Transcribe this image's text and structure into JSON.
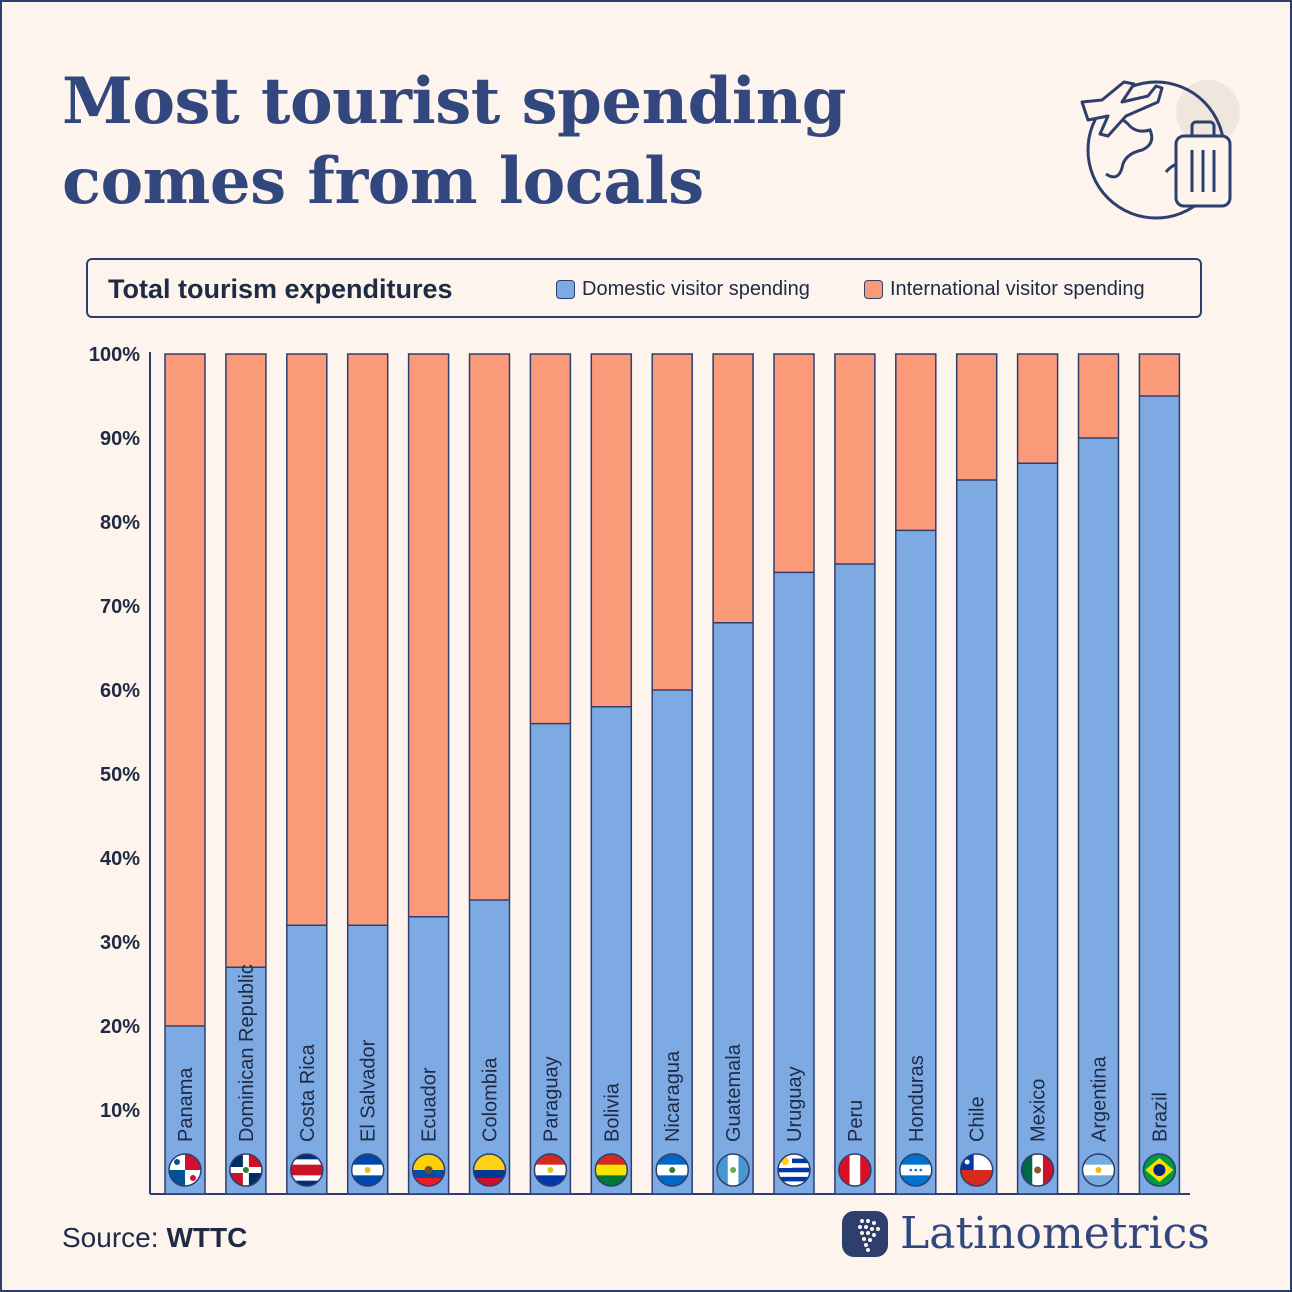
{
  "title_line1": "Most tourist spending",
  "title_line2": "comes from locals",
  "legend": {
    "title": "Total tourism expenditures",
    "domestic": "Domestic visitor spending",
    "international": "International visitor spending"
  },
  "colors": {
    "domestic": "#7daae3",
    "international": "#fb9a79",
    "outline": "#2e3f6e",
    "text": "#33477f"
  },
  "chart_data": {
    "type": "bar",
    "stacked": true,
    "title": "Total tourism expenditures",
    "categories": [
      "Panama",
      "Dominican Republic",
      "Costa Rica",
      "El Salvador",
      "Ecuador",
      "Colombia",
      "Paraguay",
      "Bolivia",
      "Nicaragua",
      "Guatemala",
      "Uruguay",
      "Peru",
      "Honduras",
      "Chile",
      "Mexico",
      "Argentina",
      "Brazil"
    ],
    "series": [
      {
        "name": "Domestic visitor spending",
        "values": [
          20,
          27,
          32,
          32,
          33,
          35,
          56,
          58,
          60,
          68,
          74,
          75,
          79,
          85,
          87,
          90,
          95
        ]
      },
      {
        "name": "International visitor spending",
        "values": [
          80,
          73,
          68,
          68,
          67,
          65,
          44,
          42,
          40,
          32,
          26,
          25,
          21,
          15,
          13,
          10,
          5
        ]
      }
    ],
    "yticks": [
      "10%",
      "20%",
      "30%",
      "40%",
      "50%",
      "60%",
      "70%",
      "80%",
      "90%",
      "100%"
    ],
    "ylim": [
      0,
      100
    ],
    "flag_icons": [
      "panama-flag-icon",
      "dominican-republic-flag-icon",
      "costa-rica-flag-icon",
      "el-salvador-flag-icon",
      "ecuador-flag-icon",
      "colombia-flag-icon",
      "paraguay-flag-icon",
      "bolivia-flag-icon",
      "nicaragua-flag-icon",
      "guatemala-flag-icon",
      "uruguay-flag-icon",
      "peru-flag-icon",
      "honduras-flag-icon",
      "chile-flag-icon",
      "mexico-flag-icon",
      "argentina-flag-icon",
      "brazil-flag-icon"
    ]
  },
  "source_label": "Source:",
  "source_name": "WTTC",
  "brand": "Latinometrics"
}
